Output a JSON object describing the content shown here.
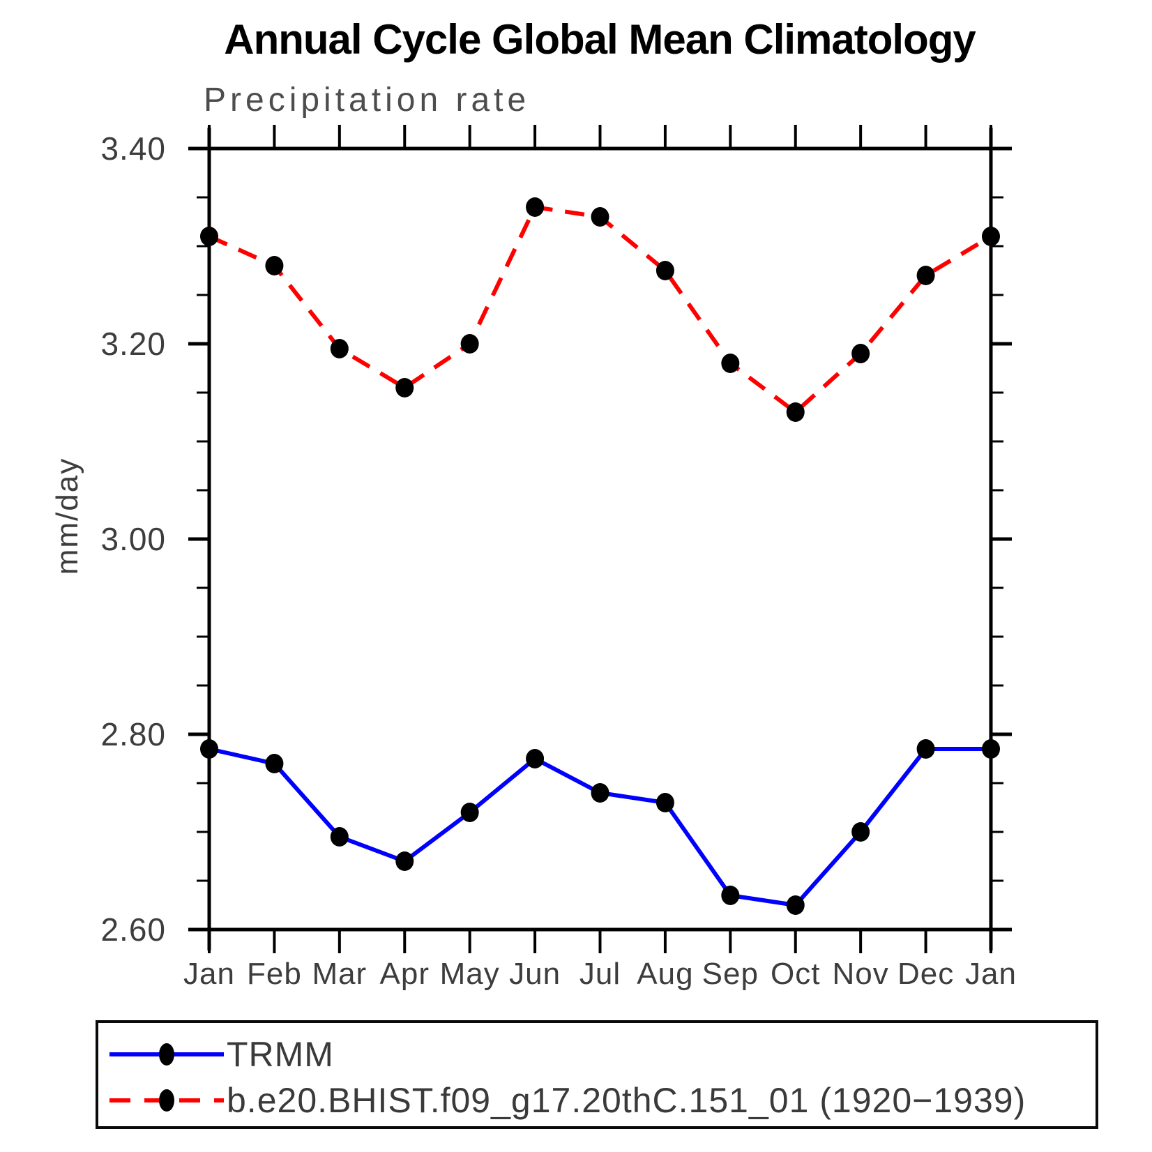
{
  "title": "Annual Cycle Global Mean Climatology",
  "subtitle": "Precipitation rate",
  "ylabel": "mm/day",
  "chart_data": {
    "type": "line",
    "x": [
      "Jan",
      "Feb",
      "Mar",
      "Apr",
      "May",
      "Jun",
      "Jul",
      "Aug",
      "Sep",
      "Oct",
      "Nov",
      "Dec",
      "Jan"
    ],
    "series": [
      {
        "name": "TRMM",
        "color": "#0000ff",
        "line_style": "solid",
        "dash": null,
        "marker": "black-dot",
        "values": [
          2.785,
          2.77,
          2.695,
          2.67,
          2.72,
          2.775,
          2.74,
          2.73,
          2.635,
          2.625,
          2.7,
          2.785,
          2.785
        ]
      },
      {
        "name": "b.e20.BHIST.f09_g17.20thC.151_01 (1920−1939)",
        "color": "#ff0000",
        "line_style": "dashed",
        "dash": "28 18",
        "marker": "black-dot",
        "values": [
          3.31,
          3.28,
          3.195,
          3.155,
          3.2,
          3.34,
          3.33,
          3.275,
          3.18,
          3.13,
          3.19,
          3.27,
          3.31
        ]
      }
    ],
    "ylim": [
      2.6,
      3.4
    ],
    "yticks": [
      3.4,
      3.2,
      3.0,
      2.8,
      2.6
    ],
    "ytick_labels": [
      "3.40",
      "3.20",
      "3.00",
      "2.80",
      "2.60"
    ],
    "y_minor_step": 0.05,
    "grid": false,
    "legend_position": "bottom-left-box",
    "marker_color": "#000000",
    "axis_color": "#000000",
    "tick_label_color": "#3d3d3d"
  }
}
